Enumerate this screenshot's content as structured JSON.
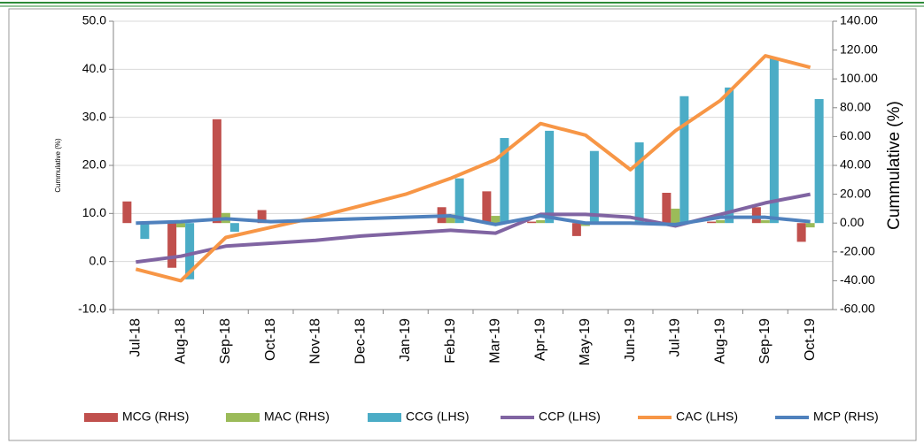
{
  "chart_data": {
    "type": "bar",
    "y_label": "Cummulative (%)",
    "y2_label": "Cummulative (%)",
    "categories": [
      "Jul-18",
      "Aug-18",
      "Sep-18",
      "Oct-18",
      "Nov-18",
      "Dec-18",
      "Jan-19",
      "Feb-19",
      "Mar-19",
      "Apr-19",
      "May-19",
      "Jun-19",
      "Jul-19",
      "Aug-19",
      "Sep-19",
      "Oct-19"
    ],
    "ylim": [
      -10,
      50
    ],
    "yticks": [
      {
        "value": -10,
        "label": "-10.0"
      },
      {
        "value": 0,
        "label": "0.0"
      },
      {
        "value": 10,
        "label": "10.0"
      },
      {
        "value": 20,
        "label": "20.0"
      },
      {
        "value": 30,
        "label": "30.0"
      },
      {
        "value": 40,
        "label": "40.0"
      },
      {
        "value": 50,
        "label": "50.0"
      }
    ],
    "y2lim": [
      -60,
      140
    ],
    "y2ticks": [
      {
        "value": -60,
        "label": "-60.00"
      },
      {
        "value": -40,
        "label": "-40.00"
      },
      {
        "value": -20,
        "label": "-20.00"
      },
      {
        "value": 0,
        "label": "0.00"
      },
      {
        "value": 20,
        "label": "20.00"
      },
      {
        "value": 40,
        "label": "40.00"
      },
      {
        "value": 60,
        "label": "60.00"
      },
      {
        "value": 80,
        "label": "80.00"
      },
      {
        "value": 100,
        "label": "100.00"
      },
      {
        "value": 120,
        "label": "120.00"
      },
      {
        "value": 140,
        "label": "140.00"
      }
    ],
    "grid": true,
    "legend": "bottom",
    "series": [
      {
        "name": "MCG (RHS)",
        "type": "bar",
        "axis": "y2",
        "color": "#c0504d",
        "values": [
          15,
          -31,
          72,
          9,
          0,
          0,
          0,
          11,
          22,
          1,
          -9,
          0,
          21,
          1,
          11,
          -13
        ]
      },
      {
        "name": "MAC (RHS)",
        "type": "bar",
        "axis": "y2",
        "color": "#9bbb59",
        "values": [
          0,
          -3,
          7,
          0,
          0,
          0,
          0,
          6,
          5,
          2,
          -2,
          0,
          10,
          2,
          2,
          -3
        ]
      },
      {
        "name": "CCG (LHS)",
        "type": "bar",
        "axis": "y2",
        "color": "#4bacc6",
        "values": [
          -11,
          -39,
          -6,
          0,
          0,
          0,
          0,
          31,
          59,
          64,
          50,
          56,
          88,
          94,
          114,
          86
        ]
      },
      {
        "name": "CCP (LHS)",
        "type": "line",
        "axis": "y2",
        "color": "#8064a2",
        "values": [
          -27,
          -23,
          -16,
          -14,
          -12,
          -9,
          -7,
          -5,
          -7,
          6,
          6,
          4,
          -2,
          6,
          14,
          20
        ]
      },
      {
        "name": "CAC (LHS)",
        "type": "line",
        "axis": "y2",
        "color": "#f79646",
        "values": [
          -32,
          -40,
          -10,
          -3,
          4,
          12,
          20,
          31,
          44,
          69,
          61,
          37,
          64,
          85,
          116,
          108
        ]
      },
      {
        "name": "MCP (RHS)",
        "type": "line",
        "axis": "y2",
        "color": "#4f81bd",
        "values": [
          0,
          1,
          3,
          1,
          2,
          3,
          4,
          5,
          -1,
          5,
          0,
          0,
          -1,
          4,
          4,
          1
        ]
      }
    ]
  }
}
